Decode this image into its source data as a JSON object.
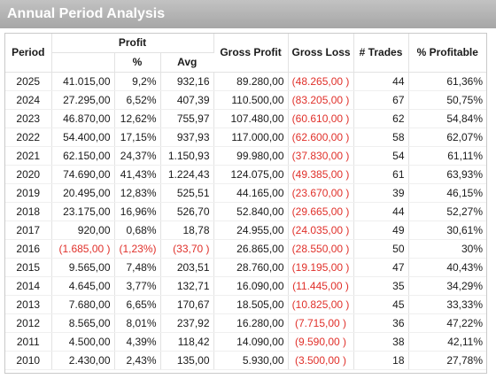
{
  "title": "Annual Period Analysis",
  "header": {
    "period": "Period",
    "profit": "Profit",
    "pct": "%",
    "avg": "Avg",
    "gross_profit": "Gross Profit",
    "gross_loss": "Gross Loss",
    "trades": "# Trades",
    "pct_profitable": "% Profitable"
  },
  "rows": [
    {
      "period": "2025",
      "profit": "41.015,00",
      "pct": "9,2%",
      "avg": "932,16",
      "gp": "89.280,00",
      "gl": "(48.265,00 )",
      "trades": "44",
      "pp": "61,36%",
      "neg": false
    },
    {
      "period": "2024",
      "profit": "27.295,00",
      "pct": "6,52%",
      "avg": "407,39",
      "gp": "110.500,00",
      "gl": "(83.205,00 )",
      "trades": "67",
      "pp": "50,75%",
      "neg": false
    },
    {
      "period": "2023",
      "profit": "46.870,00",
      "pct": "12,62%",
      "avg": "755,97",
      "gp": "107.480,00",
      "gl": "(60.610,00 )",
      "trades": "62",
      "pp": "54,84%",
      "neg": false
    },
    {
      "period": "2022",
      "profit": "54.400,00",
      "pct": "17,15%",
      "avg": "937,93",
      "gp": "117.000,00",
      "gl": "(62.600,00 )",
      "trades": "58",
      "pp": "62,07%",
      "neg": false
    },
    {
      "period": "2021",
      "profit": "62.150,00",
      "pct": "24,37%",
      "avg": "1.150,93",
      "gp": "99.980,00",
      "gl": "(37.830,00 )",
      "trades": "54",
      "pp": "61,11%",
      "neg": false
    },
    {
      "period": "2020",
      "profit": "74.690,00",
      "pct": "41,43%",
      "avg": "1.224,43",
      "gp": "124.075,00",
      "gl": "(49.385,00 )",
      "trades": "61",
      "pp": "63,93%",
      "neg": false
    },
    {
      "period": "2019",
      "profit": "20.495,00",
      "pct": "12,83%",
      "avg": "525,51",
      "gp": "44.165,00",
      "gl": "(23.670,00 )",
      "trades": "39",
      "pp": "46,15%",
      "neg": false
    },
    {
      "period": "2018",
      "profit": "23.175,00",
      "pct": "16,96%",
      "avg": "526,70",
      "gp": "52.840,00",
      "gl": "(29.665,00 )",
      "trades": "44",
      "pp": "52,27%",
      "neg": false
    },
    {
      "period": "2017",
      "profit": "920,00",
      "pct": "0,68%",
      "avg": "18,78",
      "gp": "24.955,00",
      "gl": "(24.035,00 )",
      "trades": "49",
      "pp": "30,61%",
      "neg": false
    },
    {
      "period": "2016",
      "profit": "(1.685,00 )",
      "pct": "(1,23%)",
      "avg": "(33,70 )",
      "gp": "26.865,00",
      "gl": "(28.550,00 )",
      "trades": "50",
      "pp": "30%",
      "neg": true
    },
    {
      "period": "2015",
      "profit": "9.565,00",
      "pct": "7,48%",
      "avg": "203,51",
      "gp": "28.760,00",
      "gl": "(19.195,00 )",
      "trades": "47",
      "pp": "40,43%",
      "neg": false
    },
    {
      "period": "2014",
      "profit": "4.645,00",
      "pct": "3,77%",
      "avg": "132,71",
      "gp": "16.090,00",
      "gl": "(11.445,00 )",
      "trades": "35",
      "pp": "34,29%",
      "neg": false
    },
    {
      "period": "2013",
      "profit": "7.680,00",
      "pct": "6,65%",
      "avg": "170,67",
      "gp": "18.505,00",
      "gl": "(10.825,00 )",
      "trades": "45",
      "pp": "33,33%",
      "neg": false
    },
    {
      "period": "2012",
      "profit": "8.565,00",
      "pct": "8,01%",
      "avg": "237,92",
      "gp": "16.280,00",
      "gl": "(7.715,00 )",
      "trades": "36",
      "pp": "47,22%",
      "neg": false
    },
    {
      "period": "2011",
      "profit": "4.500,00",
      "pct": "4,39%",
      "avg": "118,42",
      "gp": "14.090,00",
      "gl": "(9.590,00 )",
      "trades": "38",
      "pp": "42,11%",
      "neg": false
    },
    {
      "period": "2010",
      "profit": "2.430,00",
      "pct": "2,43%",
      "avg": "135,00",
      "gp": "5.930,00",
      "gl": "(3.500,00 )",
      "trades": "18",
      "pp": "27,78%",
      "neg": false
    }
  ],
  "colors": {
    "negative": "#e0302a",
    "titlebar": "#b3b3b3"
  }
}
